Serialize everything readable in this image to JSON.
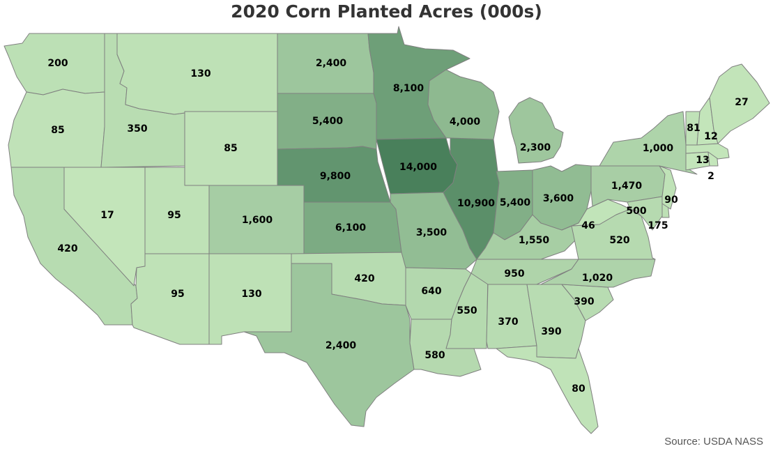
{
  "title": "2020 Corn Planted Acres (000s)",
  "source": "Source: USDA NASS",
  "colors": {
    "scale": [
      "#c4e6bb",
      "#49805b"
    ],
    "stroke": "#7f7f7f"
  },
  "map_data": {
    "metric": "Corn planted acres (000s)",
    "states": [
      {
        "state": "WA",
        "value": 200,
        "label": "200"
      },
      {
        "state": "OR",
        "value": 85,
        "label": "85"
      },
      {
        "state": "CA",
        "value": 420,
        "label": "420"
      },
      {
        "state": "ID",
        "value": 350,
        "label": "350"
      },
      {
        "state": "NV",
        "value": 17,
        "label": "17"
      },
      {
        "state": "MT",
        "value": 130,
        "label": "130"
      },
      {
        "state": "WY",
        "value": 85,
        "label": "85"
      },
      {
        "state": "UT",
        "value": 95,
        "label": "95"
      },
      {
        "state": "AZ",
        "value": 95,
        "label": "95"
      },
      {
        "state": "CO",
        "value": 1600,
        "label": "1,600"
      },
      {
        "state": "NM",
        "value": 130,
        "label": "130"
      },
      {
        "state": "ND",
        "value": 2400,
        "label": "2,400"
      },
      {
        "state": "SD",
        "value": 5400,
        "label": "5,400"
      },
      {
        "state": "NE",
        "value": 9800,
        "label": "9,800"
      },
      {
        "state": "KS",
        "value": 6100,
        "label": "6,100"
      },
      {
        "state": "OK",
        "value": 420,
        "label": "420"
      },
      {
        "state": "TX",
        "value": 2400,
        "label": "2,400"
      },
      {
        "state": "MN",
        "value": 8100,
        "label": "8,100"
      },
      {
        "state": "IA",
        "value": 14000,
        "label": "14,000"
      },
      {
        "state": "MO",
        "value": 3500,
        "label": "3,500"
      },
      {
        "state": "AR",
        "value": 640,
        "label": "640"
      },
      {
        "state": "LA",
        "value": 580,
        "label": "580"
      },
      {
        "state": "WI",
        "value": 4000,
        "label": "4,000"
      },
      {
        "state": "IL",
        "value": 10900,
        "label": "10,900"
      },
      {
        "state": "MS",
        "value": 550,
        "label": "550"
      },
      {
        "state": "MI",
        "value": 2300,
        "label": "2,300"
      },
      {
        "state": "IN",
        "value": 5400,
        "label": "5,400"
      },
      {
        "state": "KY",
        "value": 1550,
        "label": "1,550"
      },
      {
        "state": "TN",
        "value": 950,
        "label": "950"
      },
      {
        "state": "AL",
        "value": 370,
        "label": "370"
      },
      {
        "state": "OH",
        "value": 3600,
        "label": "3,600"
      },
      {
        "state": "GA",
        "value": 390,
        "label": "390"
      },
      {
        "state": "FL",
        "value": 80,
        "label": "80"
      },
      {
        "state": "SC",
        "value": 390,
        "label": "390"
      },
      {
        "state": "NC",
        "value": 1020,
        "label": "1,020"
      },
      {
        "state": "VA",
        "value": 520,
        "label": "520"
      },
      {
        "state": "WV",
        "value": 46,
        "label": "46"
      },
      {
        "state": "PA",
        "value": 1470,
        "label": "1,470"
      },
      {
        "state": "NY",
        "value": 1000,
        "label": "1,000"
      },
      {
        "state": "MD",
        "value": 500,
        "label": "500"
      },
      {
        "state": "DE",
        "value": 175,
        "label": "175"
      },
      {
        "state": "NJ",
        "value": 90,
        "label": "90"
      },
      {
        "state": "CT",
        "value": 13,
        "label": "13"
      },
      {
        "state": "RI",
        "value": 2,
        "label": "2"
      },
      {
        "state": "MA",
        "value": 12,
        "label": "12"
      },
      {
        "state": "VT",
        "value": 81,
        "label": "81"
      },
      {
        "state": "NH",
        "value": 12,
        "label": "12"
      },
      {
        "state": "ME",
        "value": 27,
        "label": "27"
      }
    ]
  }
}
